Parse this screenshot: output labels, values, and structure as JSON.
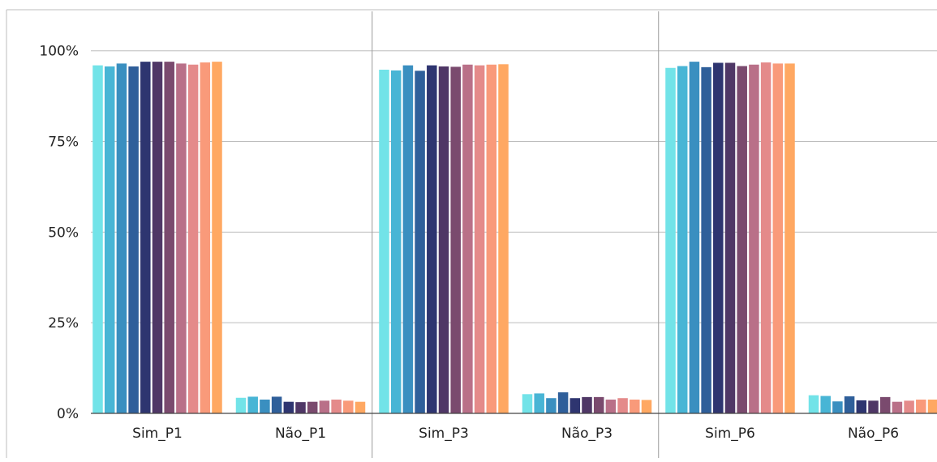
{
  "chart_data": {
    "type": "bar",
    "title": "",
    "xlabel": "",
    "ylabel": "",
    "ylim": [
      0,
      1.1
    ],
    "y_ticks": [
      {
        "value": 0,
        "label": "0%"
      },
      {
        "value": 0.25,
        "label": "25%"
      },
      {
        "value": 0.5,
        "label": "50%"
      },
      {
        "value": 0.75,
        "label": "75%"
      },
      {
        "value": 1.0,
        "label": "100%"
      }
    ],
    "grid": "horizontal",
    "legend": "none",
    "categories": [
      "Sim_P1",
      "Não_P1",
      "Sim_P3",
      "Não_P3",
      "Sim_P6",
      "Não_P6"
    ],
    "series": [
      {
        "color": "#72e3e8",
        "values": [
          0.96,
          0.043,
          0.948,
          0.053,
          0.953,
          0.05
        ]
      },
      {
        "color": "#48b5d5",
        "values": [
          0.957,
          0.046,
          0.946,
          0.055,
          0.958,
          0.048
        ]
      },
      {
        "color": "#3a8fc0",
        "values": [
          0.965,
          0.038,
          0.96,
          0.042,
          0.97,
          0.033
        ]
      },
      {
        "color": "#2f5f9a",
        "values": [
          0.957,
          0.046,
          0.945,
          0.058,
          0.955,
          0.047
        ]
      },
      {
        "color": "#2e3570",
        "values": [
          0.97,
          0.032,
          0.96,
          0.042,
          0.967,
          0.036
        ]
      },
      {
        "color": "#4f3766",
        "values": [
          0.97,
          0.031,
          0.957,
          0.045,
          0.967,
          0.035
        ]
      },
      {
        "color": "#7a4a6e",
        "values": [
          0.97,
          0.032,
          0.956,
          0.045,
          0.958,
          0.045
        ]
      },
      {
        "color": "#b97088",
        "values": [
          0.965,
          0.035,
          0.962,
          0.038,
          0.962,
          0.032
        ]
      },
      {
        "color": "#e48a8a",
        "values": [
          0.962,
          0.038,
          0.96,
          0.042,
          0.968,
          0.035
        ]
      },
      {
        "color": "#f99a7a",
        "values": [
          0.968,
          0.035,
          0.962,
          0.038,
          0.965,
          0.038
        ]
      },
      {
        "color": "#ffa862",
        "values": [
          0.97,
          0.032,
          0.963,
          0.037,
          0.965,
          0.038
        ]
      }
    ]
  }
}
